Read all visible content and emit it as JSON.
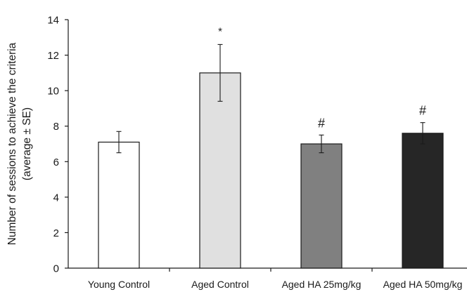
{
  "chart_data": {
    "type": "bar",
    "ylabel_line1": "Number of sessions to achieve the criteria",
    "ylabel_line2": "(average ± SE)",
    "xlabel": "",
    "ylim": [
      0,
      14
    ],
    "yticks": [
      0,
      2,
      4,
      6,
      8,
      10,
      12,
      14
    ],
    "grid": false,
    "categories": [
      "Young Control",
      "Aged Control",
      "Aged HA 25mg/kg",
      "Aged HA 50mg/kg"
    ],
    "values": [
      7.1,
      11.0,
      7.0,
      7.6
    ],
    "errors": [
      0.6,
      1.6,
      0.5,
      0.6
    ],
    "annotations": [
      "",
      "*",
      "#",
      "#"
    ],
    "colors": [
      "#ffffff",
      "#e0e0e0",
      "#808080",
      "#262626"
    ]
  }
}
